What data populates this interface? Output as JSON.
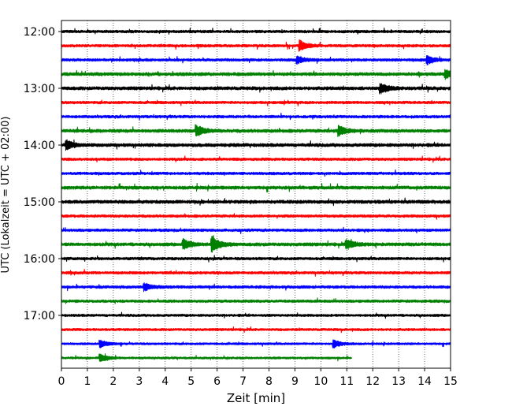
{
  "chart_data": {
    "type": "line",
    "title": "",
    "xlabel": "Zeit  [min]",
    "ylabel": "UTC (Lokalzeit = UTC + 02:00)",
    "xlim": [
      0,
      15
    ],
    "x_ticks": [
      "0",
      "1",
      "2",
      "3",
      "4",
      "5",
      "6",
      "7",
      "8",
      "9",
      "10",
      "11",
      "12",
      "13",
      "14",
      "15"
    ],
    "y_ticks": [
      "12:00",
      "13:00",
      "14:00",
      "15:00",
      "16:00",
      "17:00"
    ],
    "grid": "vertical dotted",
    "trace_colors": [
      "#000000",
      "#ff0000",
      "#0000ff",
      "#008000"
    ],
    "traces": [
      {
        "start": "12:00",
        "duration_min": 15,
        "color": "#000000",
        "amp": 0.1
      },
      {
        "start": "12:15",
        "duration_min": 15,
        "color": "#ff0000",
        "amp": 0.1
      },
      {
        "start": "12:30",
        "duration_min": 15,
        "color": "#0000ff",
        "amp": 0.1
      },
      {
        "start": "12:45",
        "duration_min": 15,
        "color": "#008000",
        "amp": 0.12
      },
      {
        "start": "13:00",
        "duration_min": 15,
        "color": "#000000",
        "amp": 0.12
      },
      {
        "start": "13:15",
        "duration_min": 15,
        "color": "#ff0000",
        "amp": 0.1
      },
      {
        "start": "13:30",
        "duration_min": 15,
        "color": "#0000ff",
        "amp": 0.1
      },
      {
        "start": "13:45",
        "duration_min": 15,
        "color": "#008000",
        "amp": 0.12
      },
      {
        "start": "14:00",
        "duration_min": 15,
        "color": "#000000",
        "amp": 0.12
      },
      {
        "start": "14:15",
        "duration_min": 15,
        "color": "#ff0000",
        "amp": 0.1
      },
      {
        "start": "14:30",
        "duration_min": 15,
        "color": "#0000ff",
        "amp": 0.1
      },
      {
        "start": "14:45",
        "duration_min": 15,
        "color": "#008000",
        "amp": 0.12
      },
      {
        "start": "15:00",
        "duration_min": 15,
        "color": "#000000",
        "amp": 0.12
      },
      {
        "start": "15:15",
        "duration_min": 15,
        "color": "#ff0000",
        "amp": 0.1
      },
      {
        "start": "15:30",
        "duration_min": 15,
        "color": "#0000ff",
        "amp": 0.1
      },
      {
        "start": "15:45",
        "duration_min": 15,
        "color": "#008000",
        "amp": 0.12
      },
      {
        "start": "16:00",
        "duration_min": 15,
        "color": "#000000",
        "amp": 0.1
      },
      {
        "start": "16:15",
        "duration_min": 15,
        "color": "#ff0000",
        "amp": 0.1
      },
      {
        "start": "16:30",
        "duration_min": 15,
        "color": "#0000ff",
        "amp": 0.1
      },
      {
        "start": "16:45",
        "duration_min": 15,
        "color": "#008000",
        "amp": 0.1
      },
      {
        "start": "17:00",
        "duration_min": 15,
        "color": "#000000",
        "amp": 0.09
      },
      {
        "start": "17:15",
        "duration_min": 15,
        "color": "#ff0000",
        "amp": 0.09
      },
      {
        "start": "17:30",
        "duration_min": 15,
        "color": "#0000ff",
        "amp": 0.08
      },
      {
        "start": "17:45",
        "duration_min": 11.2,
        "color": "#008000",
        "amp": 0.08
      }
    ],
    "events": [
      {
        "trace_start": "12:15",
        "t_min": 9.2,
        "amp": 0.35
      },
      {
        "trace_start": "12:30",
        "t_min": 9.1,
        "amp": 0.25
      },
      {
        "trace_start": "12:30",
        "t_min": 14.1,
        "amp": 0.3
      },
      {
        "trace_start": "12:45",
        "t_min": 14.8,
        "amp": 0.3
      },
      {
        "trace_start": "13:00",
        "t_min": 12.3,
        "amp": 0.35
      },
      {
        "trace_start": "13:45",
        "t_min": 5.2,
        "amp": 0.4
      },
      {
        "trace_start": "13:45",
        "t_min": 10.7,
        "amp": 0.35
      },
      {
        "trace_start": "14:00",
        "t_min": 0.2,
        "amp": 0.3
      },
      {
        "trace_start": "15:45",
        "t_min": 4.7,
        "amp": 0.35
      },
      {
        "trace_start": "15:45",
        "t_min": 5.8,
        "amp": 0.55
      },
      {
        "trace_start": "15:45",
        "t_min": 11.0,
        "amp": 0.3
      },
      {
        "trace_start": "16:30",
        "t_min": 3.2,
        "amp": 0.25
      },
      {
        "trace_start": "17:30",
        "t_min": 1.5,
        "amp": 0.25
      },
      {
        "trace_start": "17:30",
        "t_min": 10.5,
        "amp": 0.25
      },
      {
        "trace_start": "17:45",
        "t_min": 1.5,
        "amp": 0.25
      }
    ]
  }
}
